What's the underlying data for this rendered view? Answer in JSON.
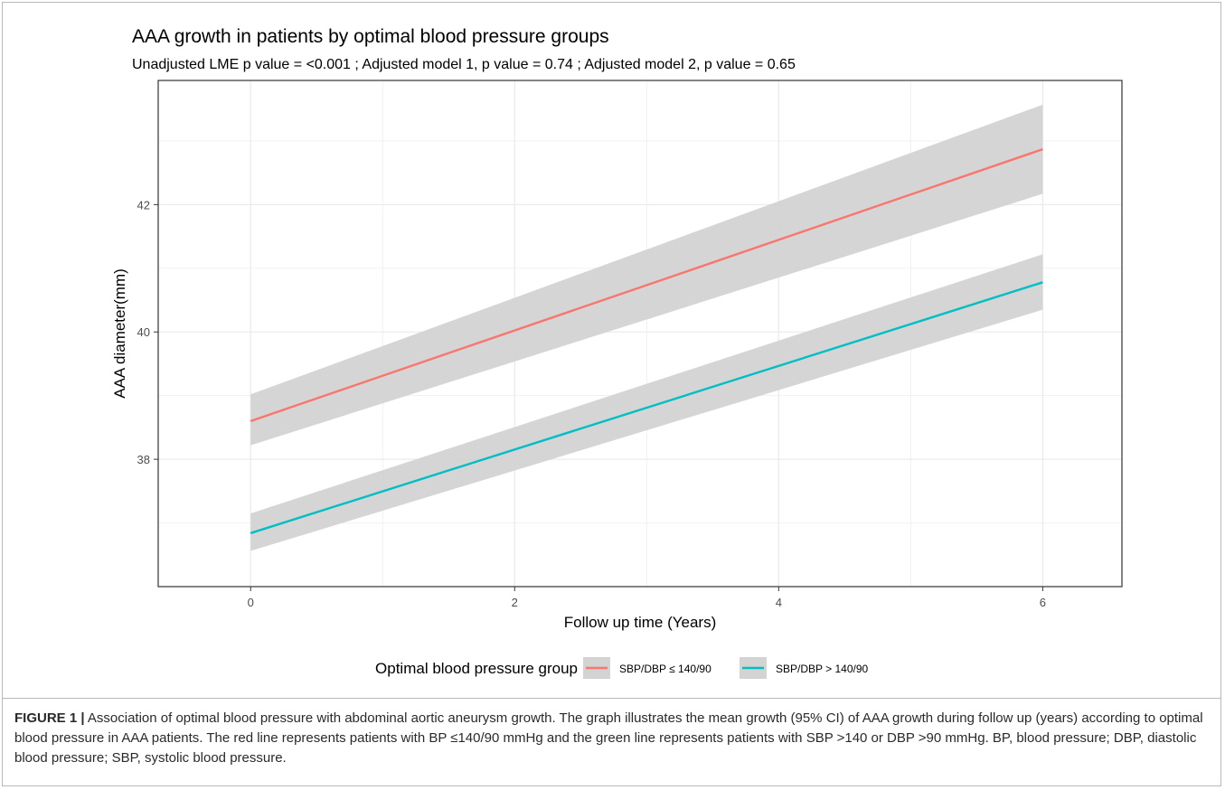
{
  "chart_data": {
    "type": "line",
    "title": "AAA growth in patients by optimal blood pressure groups",
    "subtitle": "Unadjusted LME p value = <0.001 ; Adjusted model 1, p value = 0.74 ; Adjusted model 2, p value = 0.65",
    "xlabel": "Follow up time (Years)",
    "ylabel": "AAA diameter(mm)",
    "xlim": [
      -0.7,
      6.6
    ],
    "ylim": [
      36.0,
      43.95
    ],
    "x_ticks": [
      0,
      2,
      4,
      6
    ],
    "y_ticks": [
      38,
      40,
      42
    ],
    "grid": true,
    "legend": {
      "title": "Optimal blood pressure group",
      "position": "bottom"
    },
    "series": [
      {
        "name": "SBP/DBP ≤ 140/90",
        "color": "#f8766d",
        "x": [
          0,
          6
        ],
        "y": [
          38.6,
          42.87
        ],
        "ci_lower": [
          38.22,
          42.17
        ],
        "ci_upper": [
          39.02,
          43.57
        ]
      },
      {
        "name": "SBP/DBP > 140/90",
        "color": "#00bfc4",
        "x": [
          0,
          6
        ],
        "y": [
          36.84,
          40.78
        ],
        "ci_lower": [
          36.56,
          40.35
        ],
        "ci_upper": [
          37.15,
          41.22
        ]
      }
    ]
  },
  "caption": {
    "label": "FIGURE 1 |",
    "text": " Association of optimal blood pressure with abdominal aortic aneurysm growth. The graph illustrates the mean growth (95% CI) of AAA growth during follow up (years) according to optimal blood pressure in AAA patients. The red line represents patients with BP ≤140/90 mmHg and the green line represents patients with SBP >140 or DBP >90 mmHg. BP, blood pressure; DBP, diastolic blood pressure; SBP, systolic blood pressure."
  },
  "colors": {
    "ci_band": "#d3d3d3",
    "grid": "#ebebeb",
    "panel_border": "#333333"
  }
}
